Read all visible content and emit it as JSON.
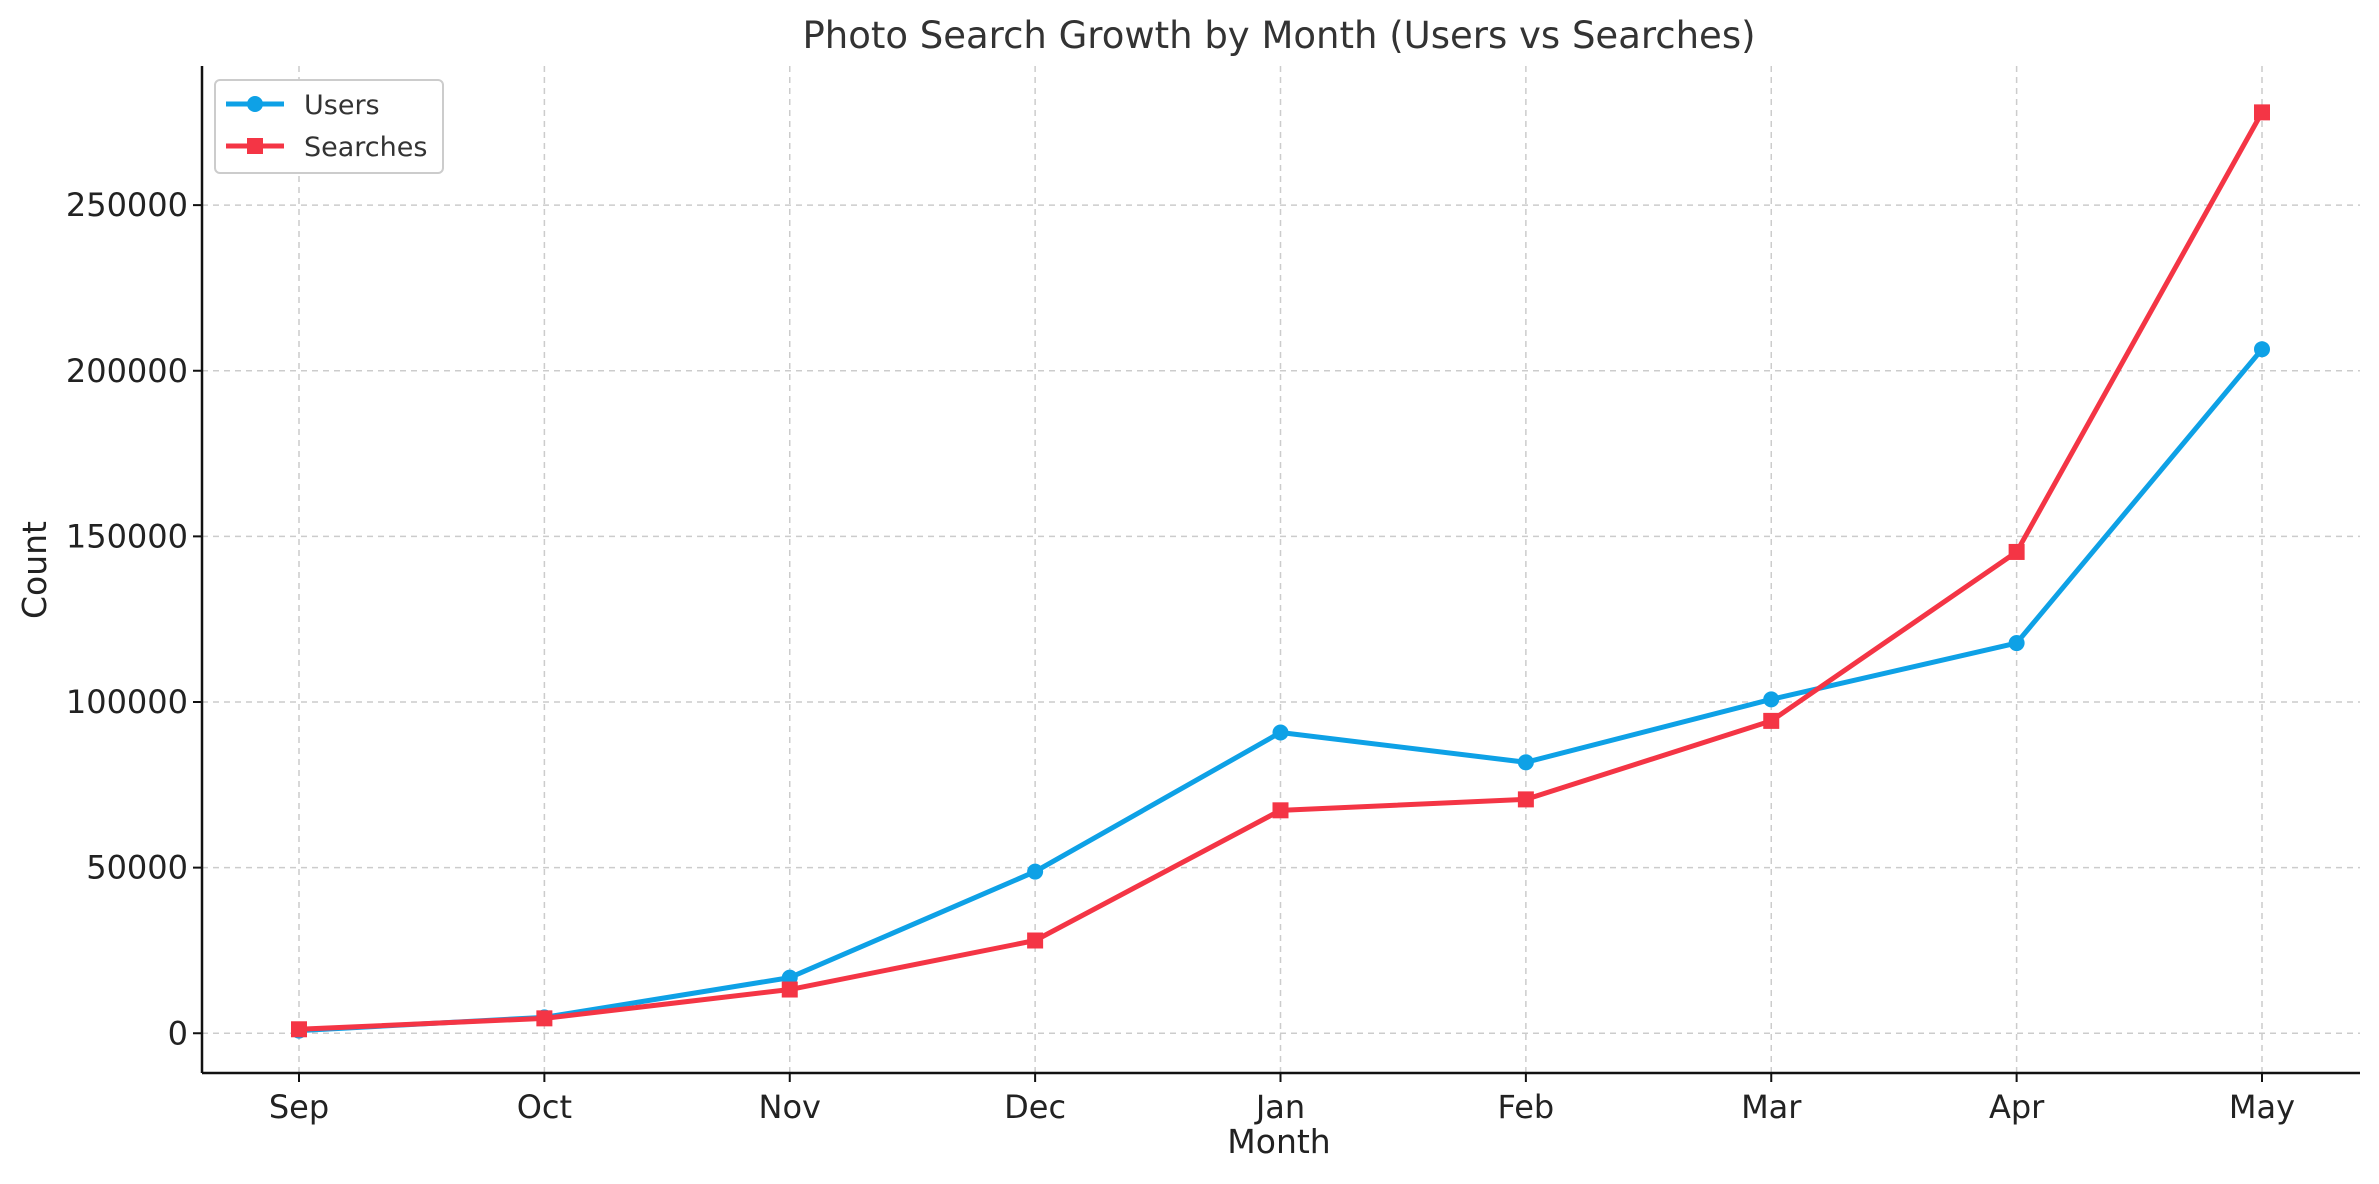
{
  "chart_data": {
    "type": "line",
    "title": "Photo Search Growth by Month (Users vs Searches)",
    "xlabel": "Month",
    "ylabel": "Count",
    "categories": [
      "Sep",
      "Oct",
      "Nov",
      "Dec",
      "Jan",
      "Feb",
      "Mar",
      "Apr",
      "May"
    ],
    "ylim": [
      -12000,
      292000
    ],
    "yticks": [
      0,
      50000,
      100000,
      150000,
      200000,
      250000
    ],
    "ytick_labels": [
      "0",
      "50000",
      "100000",
      "150000",
      "200000",
      "250000"
    ],
    "grid": true,
    "legend_position": "top-left",
    "series": [
      {
        "name": "Users",
        "color": "#0ea1e6",
        "marker": "circle",
        "values": [
          800,
          4800,
          16800,
          48800,
          90800,
          81800,
          100800,
          117800,
          206500
        ]
      },
      {
        "name": "Searches",
        "color": "#f43545",
        "marker": "square",
        "values": [
          1200,
          4500,
          13200,
          28000,
          67300,
          70600,
          94300,
          145300,
          278000
        ]
      }
    ]
  }
}
